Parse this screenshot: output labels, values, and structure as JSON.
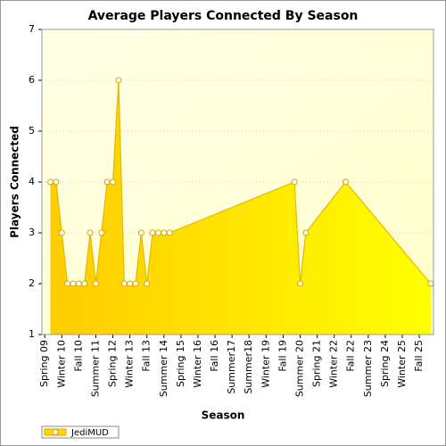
{
  "chart_data": {
    "type": "area",
    "title": "Average Players Connected By Season",
    "xlabel": "Season",
    "ylabel": "Players Connected",
    "categories": [
      "Spring 09",
      null,
      null,
      "Winter 10",
      null,
      null,
      "Fall 10",
      null,
      null,
      "Summer 11",
      null,
      null,
      "Spring 12",
      null,
      null,
      "Winter 13",
      null,
      null,
      "Fall 13",
      null,
      null,
      "Summer 14",
      null,
      null,
      "Spring 15",
      null,
      null,
      "Winter 16",
      null,
      null,
      "Fall 16",
      null,
      null,
      "Summer17",
      null,
      null,
      "Summer18",
      null,
      null,
      "Winter 19",
      null,
      null,
      "Fall 19",
      null,
      null,
      "Summer 20",
      null,
      null,
      "Spring 21",
      null,
      null,
      "Winter 22",
      null,
      null,
      "Fall 22",
      null,
      null,
      "Summer 23",
      null,
      null,
      "Spring 24",
      null,
      null,
      "Winter 25",
      null,
      null,
      "Fall 25",
      null,
      null
    ],
    "series": [
      {
        "name": "JediMUD",
        "color": "#ffd700",
        "values": [
          null,
          4,
          4,
          3,
          2,
          2,
          2,
          2,
          3,
          2,
          3,
          4,
          4,
          6,
          2,
          2,
          2,
          3,
          2,
          3,
          3,
          3,
          3,
          null,
          null,
          null,
          null,
          null,
          null,
          null,
          null,
          null,
          null,
          null,
          null,
          null,
          null,
          null,
          null,
          null,
          null,
          null,
          null,
          null,
          4,
          2,
          3,
          null,
          null,
          null,
          null,
          null,
          null,
          4,
          null,
          null,
          null,
          null,
          null,
          null,
          null,
          null,
          null,
          null,
          null,
          null,
          null,
          null,
          2
        ]
      }
    ],
    "span_gaps": true,
    "ylim": [
      1,
      7
    ],
    "yticks": [
      1,
      2,
      3,
      4,
      5,
      6,
      7
    ],
    "grid": true,
    "legend": "bottom-left"
  }
}
